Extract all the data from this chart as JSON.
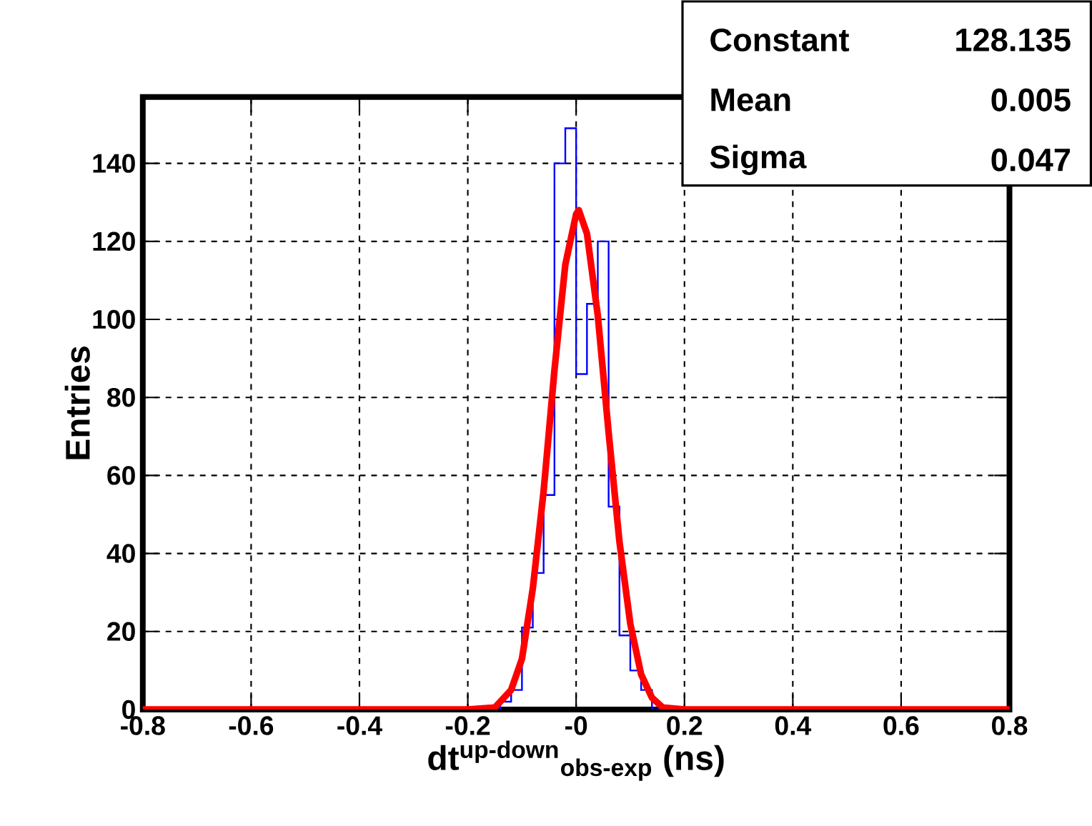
{
  "chart_data": {
    "type": "histogram",
    "xlabel": "dt$^{up-down}$$_{obs-exp}$ (ns)",
    "ylabel": "Entries",
    "xlim": [
      -0.8,
      0.8
    ],
    "ylim": [
      0,
      157
    ],
    "xticks": [
      -0.8,
      -0.6,
      -0.4,
      -0.2,
      {
        "value": 0,
        "label": "-0"
      },
      0.2,
      0.4,
      0.6,
      0.8
    ],
    "yticks": [
      0,
      20,
      40,
      60,
      80,
      100,
      120,
      140
    ],
    "grid": true,
    "series": [
      {
        "type": "histogram",
        "color": "#0000ff",
        "bins": [
          -0.8,
          -0.14,
          -0.12,
          -0.1,
          -0.08,
          -0.06,
          -0.04,
          -0.02,
          0,
          0.02,
          0.04,
          0.06,
          0.08,
          0.1,
          0.12,
          0.14,
          0.8
        ],
        "values": [
          0,
          2,
          5,
          21,
          35,
          55,
          140,
          149,
          86,
          104,
          120,
          52,
          19,
          10,
          5,
          0
        ]
      },
      {
        "type": "line",
        "color": "#ff0000",
        "x": [
          -0.8,
          -0.2,
          -0.15,
          -0.12,
          -0.1,
          -0.08,
          -0.06,
          -0.04,
          -0.02,
          0,
          0.005,
          0.02,
          0.04,
          0.06,
          0.08,
          0.1,
          0.12,
          0.14,
          0.16,
          0.2,
          0.8
        ],
        "values": [
          0,
          0,
          0.5,
          5,
          13,
          31,
          56,
          87,
          114,
          127,
          128,
          122,
          101,
          71,
          43,
          22,
          9,
          3,
          0.5,
          0,
          0
        ]
      }
    ],
    "annotations": [
      "Constant",
      "128.135",
      "Mean",
      "0.005",
      "Sigma",
      "0.047"
    ]
  }
}
